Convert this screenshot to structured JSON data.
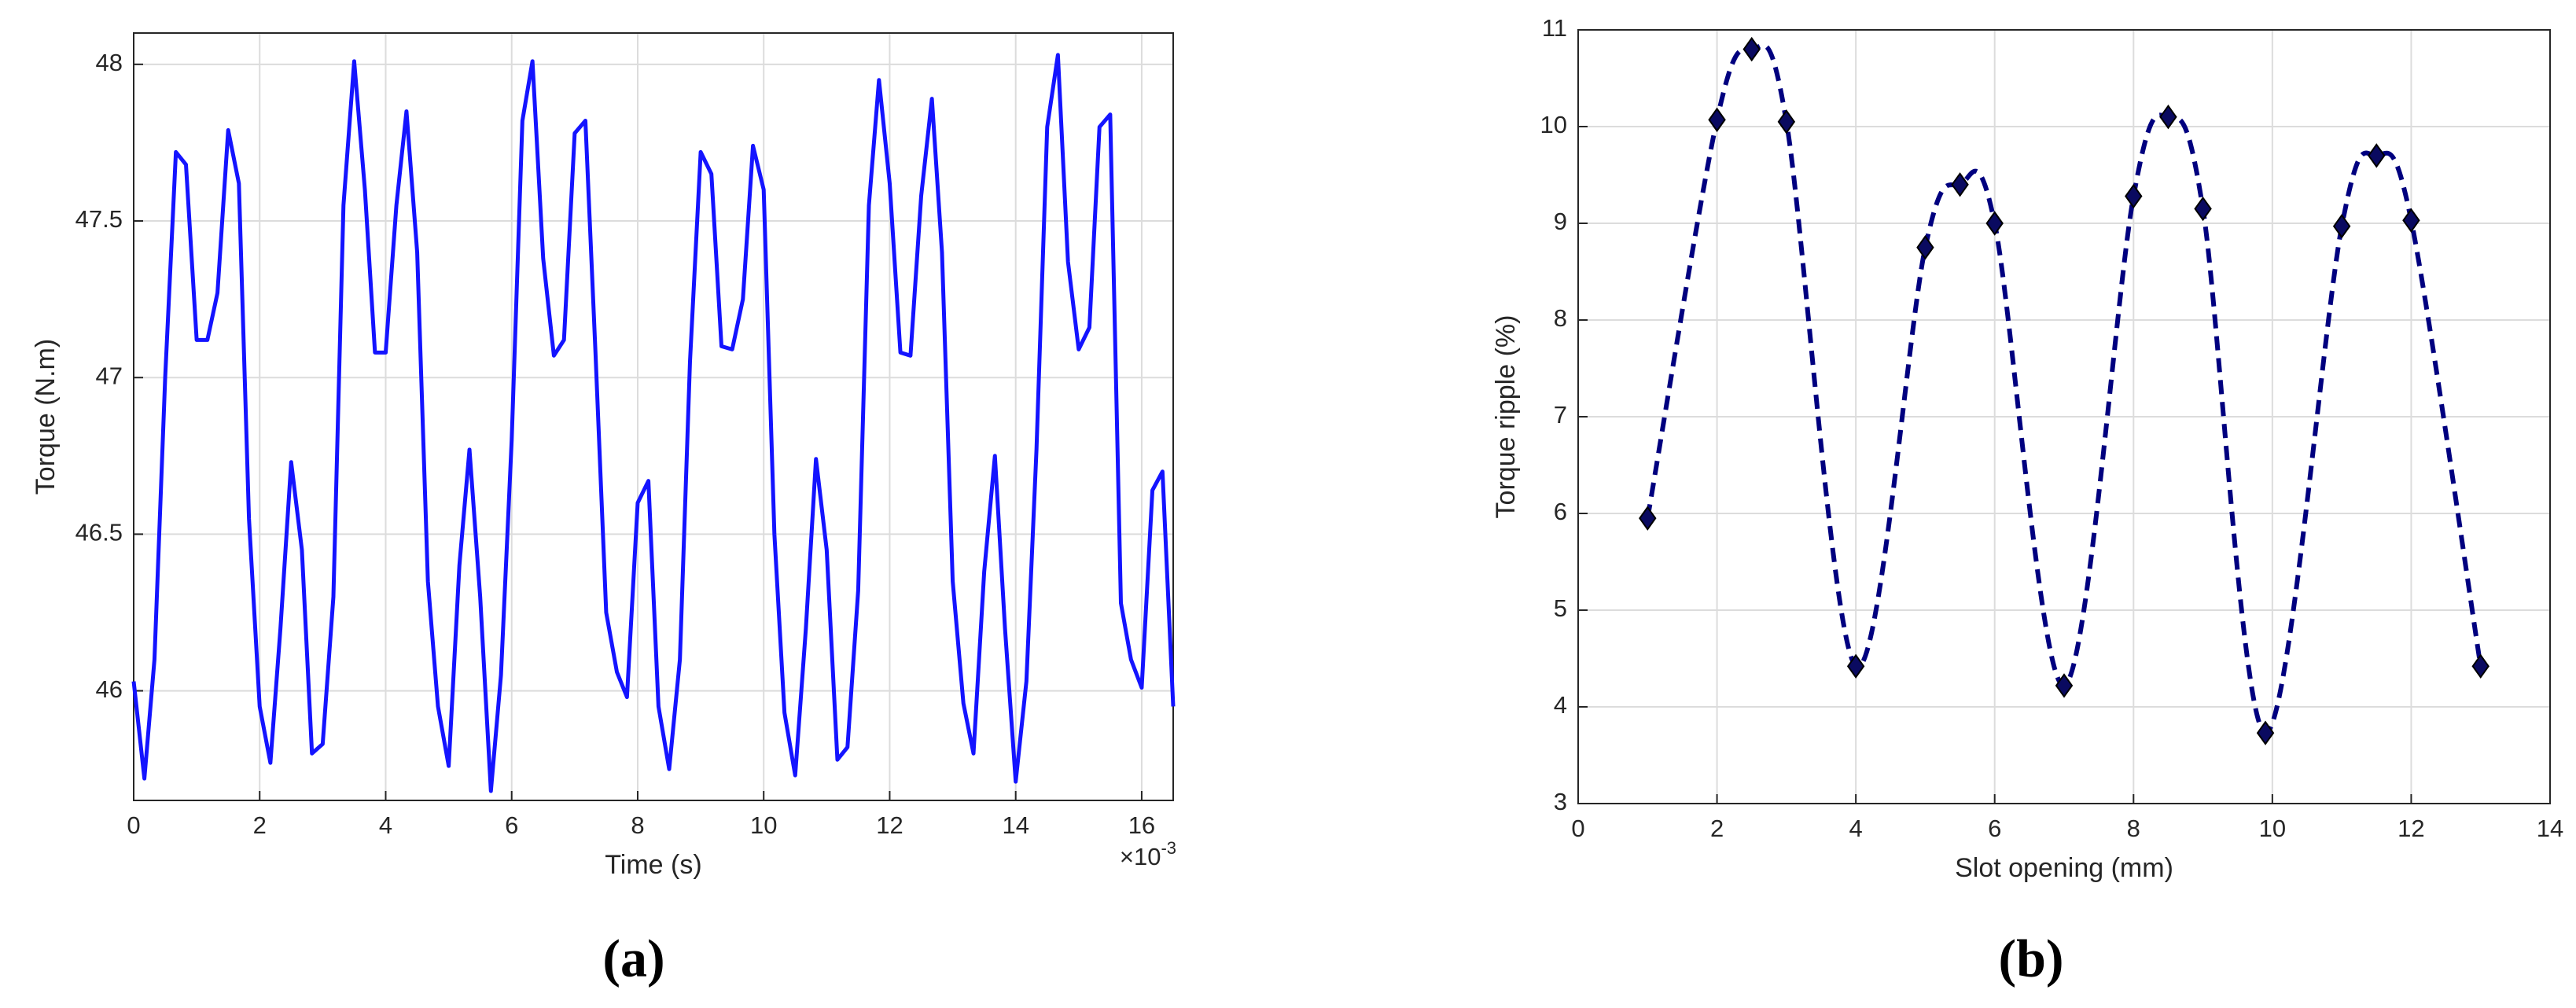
{
  "chart_data": [
    {
      "type": "line",
      "xlabel": "Time (s)",
      "ylabel": "Torque (N.m)",
      "x_multiplier": {
        "base": "×10",
        "exponent": "-3"
      },
      "panel_label": "(a)",
      "grid": true,
      "x": [
        0,
        0.17,
        0.33,
        0.5,
        0.67,
        0.83,
        1,
        1.17,
        1.33,
        1.5,
        1.67,
        1.83,
        2,
        2.17,
        2.33,
        2.5,
        2.67,
        2.83,
        3,
        3.17,
        3.33,
        3.5,
        3.67,
        3.83,
        4,
        4.17,
        4.33,
        4.5,
        4.67,
        4.83,
        5,
        5.17,
        5.33,
        5.5,
        5.67,
        5.83,
        6,
        6.17,
        6.33,
        6.5,
        6.67,
        6.83,
        7,
        7.17,
        7.33,
        7.5,
        7.67,
        7.83,
        8,
        8.17,
        8.33,
        8.5,
        8.67,
        8.83,
        9,
        9.17,
        9.33,
        9.5,
        9.67,
        9.83,
        10,
        10.17,
        10.33,
        10.5,
        10.67,
        10.83,
        11,
        11.17,
        11.33,
        11.5,
        11.67,
        11.83,
        12,
        12.17,
        12.33,
        12.5,
        12.67,
        12.83,
        13,
        13.17,
        13.33,
        13.5,
        13.67,
        13.83,
        14,
        14.17,
        14.33,
        14.5,
        14.67,
        14.83,
        15,
        15.17,
        15.33,
        15.5,
        15.67,
        15.83,
        16,
        16.17,
        16.33,
        16.5
      ],
      "series": [
        {
          "color": "#1414ff",
          "values": [
            46.03,
            45.72,
            46.1,
            47.0,
            47.72,
            47.68,
            47.12,
            47.12,
            47.27,
            47.79,
            47.62,
            46.55,
            45.95,
            45.77,
            46.2,
            46.73,
            46.45,
            45.8,
            45.83,
            46.3,
            47.55,
            48.01,
            47.6,
            47.08,
            47.08,
            47.55,
            47.85,
            47.4,
            46.35,
            45.95,
            45.76,
            46.4,
            46.77,
            46.3,
            45.68,
            46.05,
            46.8,
            47.82,
            48.01,
            47.38,
            47.07,
            47.12,
            47.78,
            47.82,
            47.08,
            46.25,
            46.06,
            45.98,
            46.6,
            46.67,
            45.95,
            45.75,
            46.1,
            47.05,
            47.72,
            47.65,
            47.1,
            47.09,
            47.25,
            47.74,
            47.6,
            46.5,
            45.93,
            45.73,
            46.2,
            46.74,
            46.45,
            45.78,
            45.82,
            46.32,
            47.55,
            47.95,
            47.62,
            47.08,
            47.07,
            47.58,
            47.89,
            47.4,
            46.35,
            45.96,
            45.8,
            46.38,
            46.75,
            46.2,
            45.71,
            46.03,
            46.77,
            47.8,
            48.03,
            47.37,
            47.09,
            47.16,
            47.8,
            47.84,
            46.28,
            46.1,
            46.01,
            46.64,
            46.7,
            45.95
          ]
        }
      ],
      "xlim": [
        0,
        16.5
      ],
      "xticks": [
        0,
        2,
        4,
        6,
        8,
        10,
        12,
        14,
        16
      ],
      "ylim": [
        45.65,
        48.1
      ],
      "yticks": [
        46,
        46.5,
        47,
        47.5,
        48
      ]
    },
    {
      "type": "scatter",
      "xlabel": "Slot opening (mm)",
      "ylabel": "Torque ripple (%)",
      "panel_label": "(b)",
      "grid": true,
      "x": [
        1,
        2,
        2.5,
        3,
        4,
        5,
        5.5,
        6,
        7,
        8,
        8.5,
        9,
        9.9,
        11,
        11.5,
        12,
        13
      ],
      "series": [
        {
          "color": "#00007f",
          "line": "dashed",
          "marker": "diamond",
          "values": [
            5.95,
            10.07,
            10.8,
            10.05,
            4.42,
            8.75,
            9.4,
            9.0,
            4.22,
            9.28,
            10.1,
            9.15,
            3.73,
            8.97,
            9.7,
            9.03,
            4.42
          ]
        }
      ],
      "xlim": [
        0,
        14
      ],
      "xticks": [
        0,
        2,
        4,
        6,
        8,
        10,
        12,
        14
      ],
      "ylim": [
        3,
        11
      ],
      "yticks": [
        3,
        4,
        5,
        6,
        7,
        8,
        9,
        10,
        11
      ]
    }
  ]
}
